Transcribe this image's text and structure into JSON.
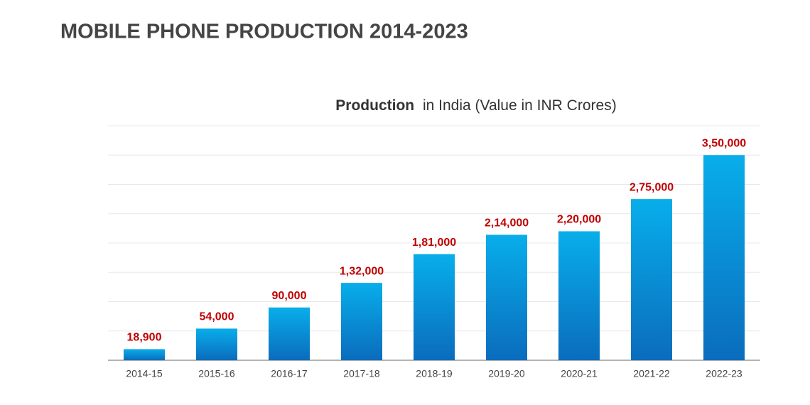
{
  "chart_data": {
    "type": "bar",
    "title": "MOBILE PHONE PRODUCTION 2014-2023",
    "subtitle_bold": "Production",
    "subtitle": "in India (Value in INR Crores)",
    "categories": [
      "2014-15",
      "2015-16",
      "2016-17",
      "2017-18",
      "2018-19",
      "2019-20",
      "2020-21",
      "2021-22",
      "2022-23"
    ],
    "values": [
      18900,
      54000,
      90000,
      132000,
      181000,
      214000,
      220000,
      275000,
      350000
    ],
    "value_labels": [
      "18,900",
      "54,000",
      "90,000",
      "1,32,000",
      "1,81,000",
      "2,14,000",
      "2,20,000",
      "2,75,000",
      "3,50,000"
    ],
    "color": "#08aeea",
    "label_color": "#c00000",
    "ylim": [
      0,
      400000
    ],
    "yticks": [
      0,
      50000,
      100000,
      150000,
      200000,
      250000,
      300000,
      350000,
      400000
    ],
    "grid": true
  }
}
